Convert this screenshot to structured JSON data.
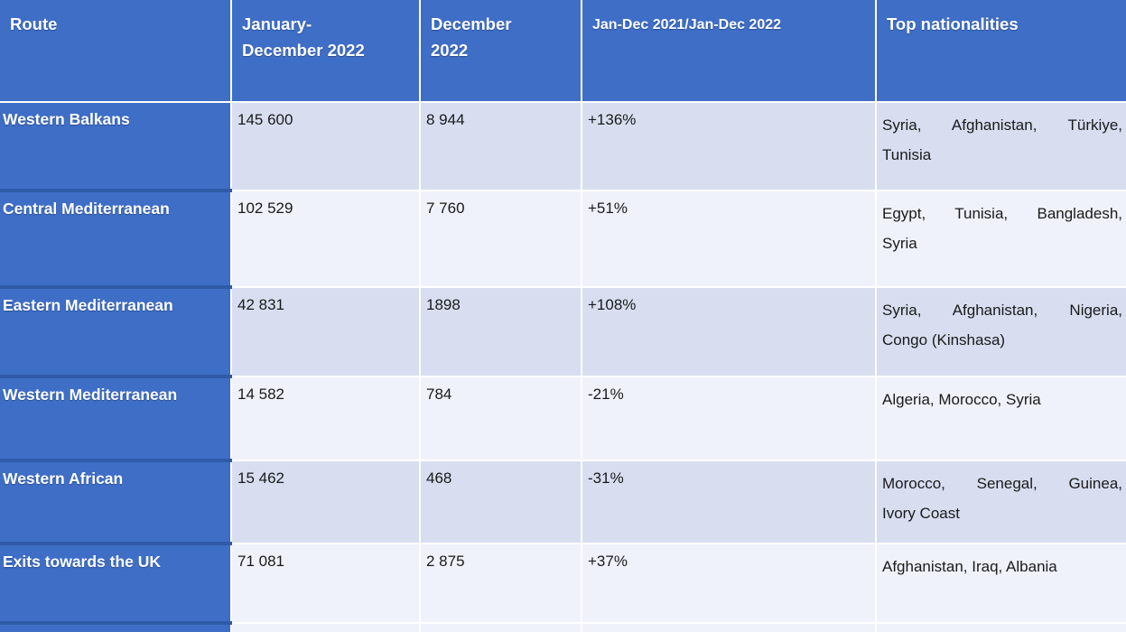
{
  "table": {
    "header": {
      "columns": [
        {
          "lines": [
            "Route"
          ]
        },
        {
          "lines": [
            "January-",
            "December 2022"
          ]
        },
        {
          "lines": [
            "December",
            "2022"
          ]
        },
        {
          "lines": [
            "Jan-Dec 2021/Jan-Dec 2022"
          ]
        },
        {
          "lines": [
            "Top nationalities"
          ]
        }
      ]
    },
    "rows": [
      {
        "route": "Western Balkans",
        "total_2022": "145 600",
        "december_2022": "8 944",
        "change": "+136%",
        "nationalities_lines": [
          "Syria, Afghanistan, Türkiye,",
          "Tunisia"
        ]
      },
      {
        "route": "Central Mediterranean",
        "total_2022": "102 529",
        "december_2022": "7 760",
        "change": "+51%",
        "nationalities_lines": [
          "Egypt, Tunisia, Bangladesh,",
          "Syria"
        ]
      },
      {
        "route": "Eastern Mediterranean",
        "total_2022": "42 831",
        "december_2022": "1898",
        "change": "+108%",
        "nationalities_lines": [
          "Syria, Afghanistan, Nigeria,",
          "Congo (Kinshasa)"
        ]
      },
      {
        "route": "Western Mediterranean",
        "total_2022": "14 582",
        "december_2022": "784",
        "change": "-21%",
        "nationalities_lines": [
          "Algeria, Morocco, Syria"
        ]
      },
      {
        "route": "Western African",
        "total_2022": "15 462",
        "december_2022": "468",
        "change": "-31%",
        "nationalities_lines": [
          "Morocco, Senegal, Guinea,",
          "Ivory Coast"
        ]
      },
      {
        "route": "Exits towards the UK",
        "total_2022": "71 081",
        "december_2022": "2 875",
        "change": "+37%",
        "nationalities_lines": [
          "Afghanistan, Iraq, Albania"
        ]
      }
    ]
  },
  "colors": {
    "header_blue": "#3E6EC6",
    "route_column_blue": "#3E6EC6",
    "row_band_dark": "#D8DEF0",
    "row_band_light": "#EFF2FA",
    "blue_row_separator": "#2F5AA8",
    "gridline": "#FFFFFF",
    "header_text": "#FFFFFF",
    "body_text": "#1A1A1A"
  },
  "chart_data": {
    "type": "table",
    "title": "Irregular border crossings by route, 2022",
    "columns": [
      "Route",
      "January-December 2022",
      "December 2022",
      "Jan-Dec 2021/Jan-Dec 2022",
      "Top nationalities"
    ],
    "rows": [
      [
        "Western Balkans",
        "145 600",
        "8 944",
        "+136%",
        "Syria, Afghanistan, Türkiye, Tunisia"
      ],
      [
        "Central Mediterranean",
        "102 529",
        "7 760",
        "+51%",
        "Egypt, Tunisia, Bangladesh, Syria"
      ],
      [
        "Eastern Mediterranean",
        "42 831",
        "1898",
        "+108%",
        "Syria, Afghanistan, Nigeria, Congo (Kinshasa)"
      ],
      [
        "Western Mediterranean",
        "14 582",
        "784",
        "-21%",
        "Algeria, Morocco, Syria"
      ],
      [
        "Western African",
        "15 462",
        "468",
        "-31%",
        "Morocco, Senegal, Guinea, Ivory Coast"
      ],
      [
        "Exits towards the UK",
        "71 081",
        "2 875",
        "+37%",
        "Afghanistan, Iraq, Albania"
      ]
    ]
  }
}
